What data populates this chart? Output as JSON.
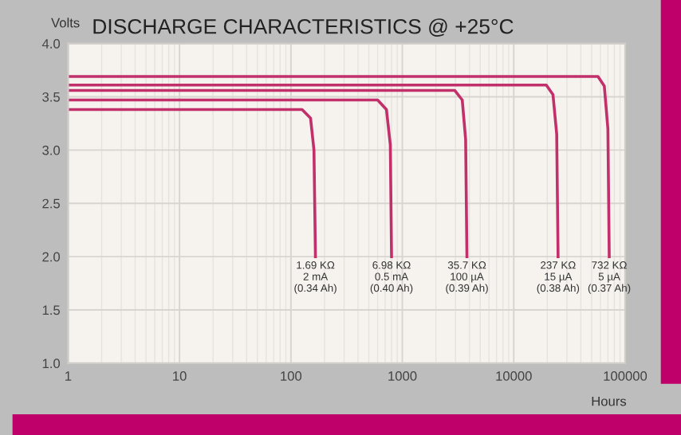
{
  "chart_data": {
    "type": "line",
    "title": "DISCHARGE CHARACTERISTICS @ +25°C",
    "xlabel": "Hours",
    "ylabel": "Volts",
    "log": "x",
    "xlim": [
      1,
      100000
    ],
    "xticks": [
      1,
      10,
      100,
      1000,
      10000,
      100000
    ],
    "ylim": [
      1.0,
      4.0
    ],
    "yticks": [
      {
        "value": 1.0,
        "label": "1.0"
      },
      {
        "value": 1.5,
        "label": "1.5"
      },
      {
        "value": 2.0,
        "label": "2.0"
      },
      {
        "value": 2.5,
        "label": "2.5"
      },
      {
        "value": 3.0,
        "label": "3.0"
      },
      {
        "value": 3.5,
        "label": "3.5"
      },
      {
        "value": 4.0,
        "label": "4.0"
      }
    ],
    "grid": true,
    "marker": "none",
    "line_style": "solid",
    "series": [
      {
        "color": "#c2306c",
        "x": [
          1,
          126,
          150,
          161,
          166
        ],
        "values": [
          3.38,
          3.38,
          3.3,
          3.0,
          2.0
        ]
      },
      {
        "color": "#c2306c",
        "x": [
          1,
          600,
          720,
          780,
          800
        ],
        "values": [
          3.47,
          3.47,
          3.38,
          3.05,
          2.0
        ]
      },
      {
        "color": "#c2306c",
        "x": [
          1,
          2950,
          3450,
          3700,
          3800
        ],
        "values": [
          3.56,
          3.56,
          3.47,
          3.1,
          2.0
        ]
      },
      {
        "color": "#c2306c",
        "x": [
          1,
          19600,
          22500,
          24300,
          25000
        ],
        "values": [
          3.61,
          3.61,
          3.52,
          3.15,
          2.0
        ]
      },
      {
        "color": "#c2306c",
        "x": [
          1,
          57000,
          65000,
          70000,
          72000
        ],
        "values": [
          3.69,
          3.69,
          3.6,
          3.2,
          2.0
        ]
      }
    ],
    "annotations": [
      {
        "text": "1.69 KΩ\n2 mA\n(0.34 Ah)",
        "x": 166,
        "y": 2.0
      },
      {
        "text": "6.98 KΩ\n0.5 mA\n(0.40 Ah)",
        "x": 800,
        "y": 2.0
      },
      {
        "text": "35.7 KΩ\n100 µA\n(0.39 Ah)",
        "x": 3800,
        "y": 2.0
      },
      {
        "text": "237 KΩ\n15 µA\n(0.38 Ah)",
        "x": 25000,
        "y": 2.0
      },
      {
        "text": "732 KΩ\n5 µA\n(0.37 Ah)",
        "x": 72000,
        "y": 2.0
      }
    ]
  }
}
